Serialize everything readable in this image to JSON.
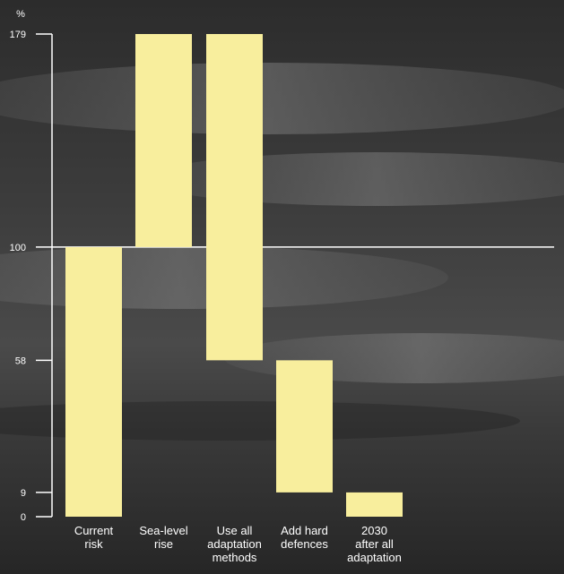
{
  "colors": {
    "bar": "#f8ee9d",
    "axis": "#ffffff",
    "text": "#ffffff",
    "background_dark": "#2a2a2a"
  },
  "chart_data": {
    "type": "bar",
    "subtype": "waterfall",
    "unit_label": "%",
    "categories": [
      [
        "Current",
        "risk"
      ],
      [
        "Sea-level",
        "rise"
      ],
      [
        "Use all",
        "adaptation",
        "methods"
      ],
      [
        "Add hard",
        "defences"
      ],
      [
        "2030",
        "after all",
        "adaptation"
      ]
    ],
    "bars": [
      {
        "base": 0,
        "top": 100
      },
      {
        "base": 100,
        "top": 179
      },
      {
        "base": 58,
        "top": 179
      },
      {
        "base": 9,
        "top": 58
      },
      {
        "base": 0,
        "top": 9
      }
    ],
    "y_ticks": [
      0,
      9,
      58,
      100,
      179
    ],
    "ylim": [
      0,
      179
    ],
    "reference_line": 100,
    "background": "photograph of ocean waves (greyscale)",
    "grid": false
  }
}
